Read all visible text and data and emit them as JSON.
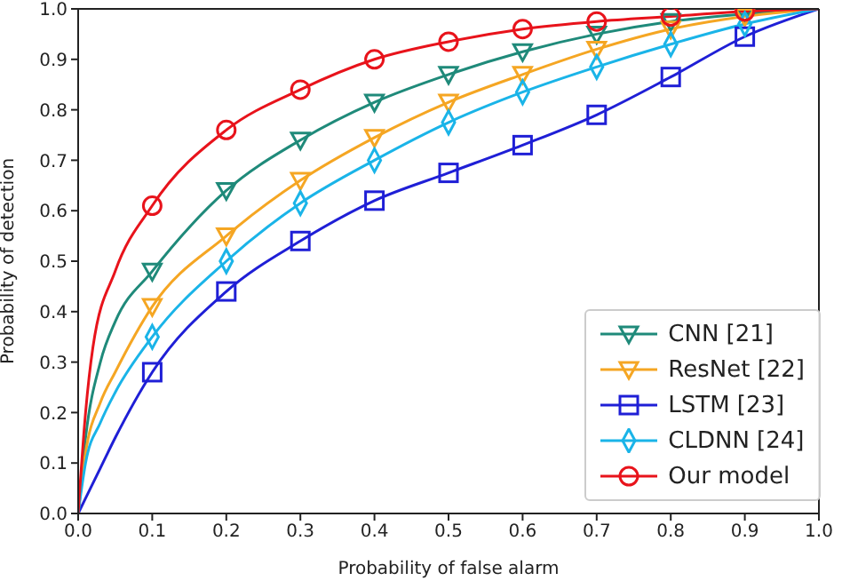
{
  "chart_data": {
    "type": "line",
    "xlabel": "Probability of false alarm",
    "ylabel": "Probability of detection",
    "xlim": [
      0,
      1
    ],
    "ylim": [
      0,
      1
    ],
    "xticks": [
      {
        "value": 0,
        "label": "0.0"
      },
      0.1,
      0.2,
      0.3,
      0.4,
      0.5,
      0.6,
      0.7,
      0.8,
      0.9,
      {
        "value": 1,
        "label": "1.0"
      }
    ],
    "yticks": [
      {
        "value": 0,
        "label": "0.0"
      },
      0.1,
      0.2,
      0.3,
      0.4,
      0.5,
      0.6,
      0.7,
      0.8,
      0.9,
      {
        "value": 1,
        "label": "1.0"
      }
    ],
    "legend": "bottom right",
    "line_style": "solid",
    "series": [
      {
        "name": "CNN [21]",
        "color": "#1f8a7a",
        "marker": "triangle",
        "x": [
          0,
          0.01,
          0.03,
          0.05,
          0.1,
          0.2,
          0.3,
          0.4,
          0.5,
          0.6,
          0.7,
          0.8,
          0.9,
          1
        ],
        "values": [
          0,
          0.15,
          0.3,
          0.38,
          0.48,
          0.64,
          0.74,
          0.815,
          0.87,
          0.915,
          0.95,
          0.975,
          0.99,
          1
        ]
      },
      {
        "name": "ResNet [22]",
        "color": "#f5a623",
        "marker": "triangle",
        "x": [
          0,
          0.01,
          0.03,
          0.05,
          0.1,
          0.2,
          0.3,
          0.4,
          0.5,
          0.6,
          0.7,
          0.8,
          0.9,
          1
        ],
        "values": [
          0,
          0.12,
          0.22,
          0.28,
          0.41,
          0.55,
          0.66,
          0.745,
          0.815,
          0.87,
          0.92,
          0.96,
          0.985,
          1
        ]
      },
      {
        "name": "LSTM [23]",
        "color": "#1f1fd6",
        "marker": "square",
        "x": [
          0,
          0.01,
          0.03,
          0.05,
          0.1,
          0.2,
          0.3,
          0.4,
          0.5,
          0.6,
          0.7,
          0.8,
          0.9,
          1
        ],
        "values": [
          0,
          0.03,
          0.09,
          0.15,
          0.28,
          0.44,
          0.54,
          0.62,
          0.675,
          0.73,
          0.79,
          0.865,
          0.945,
          1
        ]
      },
      {
        "name": "CLDNN [24]",
        "color": "#1ab4e8",
        "marker": "diamond",
        "x": [
          0,
          0.01,
          0.03,
          0.05,
          0.1,
          0.2,
          0.3,
          0.4,
          0.5,
          0.6,
          0.7,
          0.8,
          0.9,
          1
        ],
        "values": [
          0,
          0.1,
          0.18,
          0.24,
          0.35,
          0.5,
          0.615,
          0.7,
          0.775,
          0.835,
          0.885,
          0.93,
          0.97,
          1
        ]
      },
      {
        "name": "Our model",
        "color": "#e8131b",
        "marker": "circle",
        "x": [
          0,
          0.01,
          0.02,
          0.05,
          0.1,
          0.2,
          0.3,
          0.4,
          0.5,
          0.6,
          0.7,
          0.8,
          0.9,
          1
        ],
        "values": [
          0,
          0.2,
          0.33,
          0.48,
          0.61,
          0.76,
          0.84,
          0.9,
          0.935,
          0.96,
          0.975,
          0.985,
          0.995,
          1
        ]
      }
    ]
  }
}
